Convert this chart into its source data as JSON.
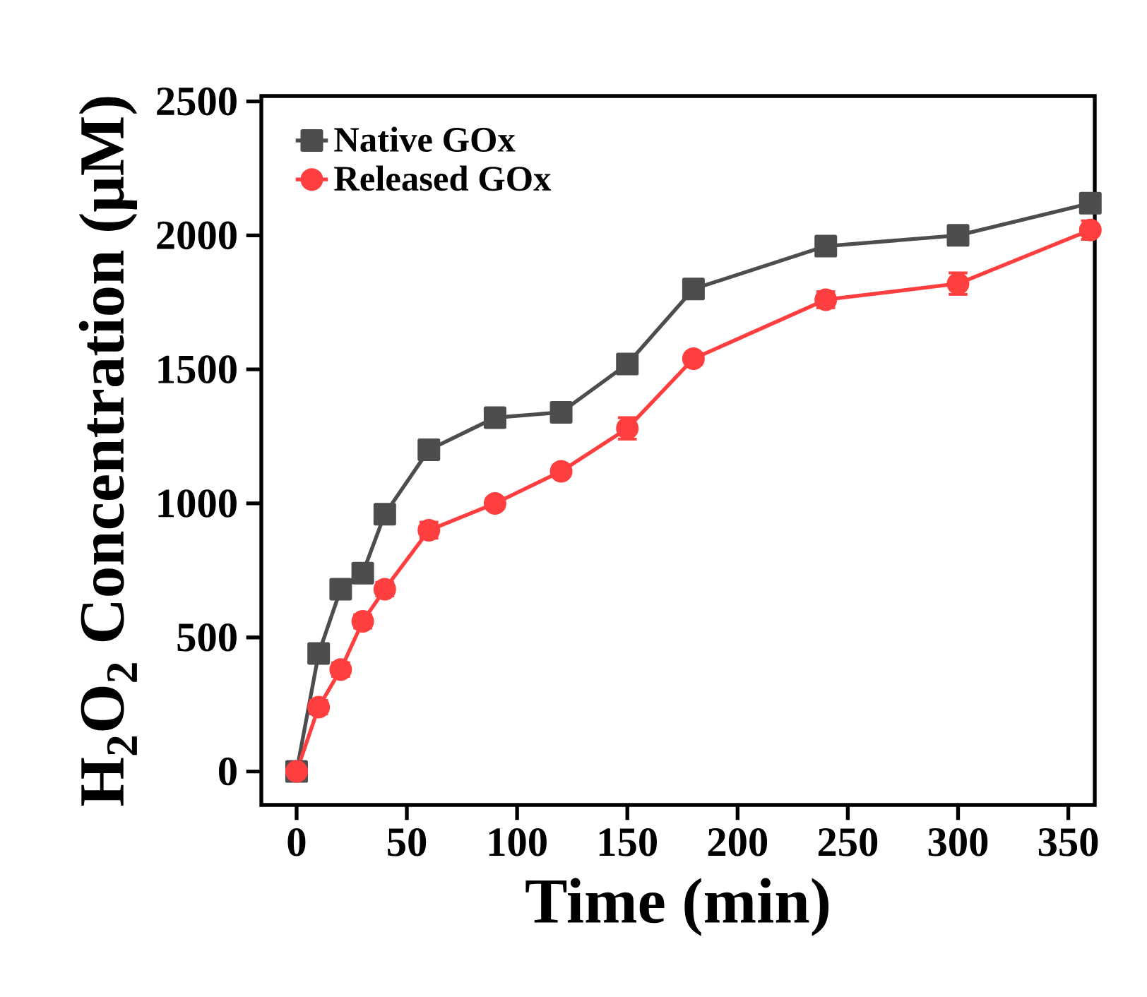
{
  "chart_data": {
    "type": "line",
    "xlabel": "Time (min)",
    "ylabel": "H$_{2}$O$_{2}$ Concentration (μM)",
    "x": [
      0,
      10,
      20,
      30,
      40,
      60,
      90,
      120,
      150,
      180,
      240,
      300,
      360
    ],
    "series": [
      {
        "name": "Native GOx",
        "color": "#4d4d4d",
        "marker": "square",
        "values": [
          0,
          440,
          680,
          740,
          960,
          1200,
          1320,
          1340,
          1520,
          1800,
          1960,
          2000,
          2120
        ],
        "errors": [
          null,
          20,
          25,
          20,
          35,
          25,
          20,
          20,
          25,
          20,
          25,
          20,
          25
        ]
      },
      {
        "name": "Released GOx",
        "color": "#ff3f3f",
        "marker": "circle",
        "values": [
          0,
          240,
          380,
          560,
          680,
          900,
          1000,
          1120,
          1280,
          1540,
          1760,
          1820,
          2020
        ],
        "errors": [
          null,
          25,
          25,
          25,
          25,
          30,
          20,
          20,
          40,
          20,
          30,
          40,
          35
        ]
      }
    ],
    "xlim": [
      -16,
      362
    ],
    "ylim": [
      -125,
      2520
    ],
    "xticks": [
      0,
      50,
      100,
      150,
      200,
      250,
      300,
      350
    ],
    "yticks": [
      0,
      500,
      1000,
      1500,
      2000,
      2500
    ],
    "grid": false,
    "legend": "top left",
    "line_style": "solid"
  }
}
